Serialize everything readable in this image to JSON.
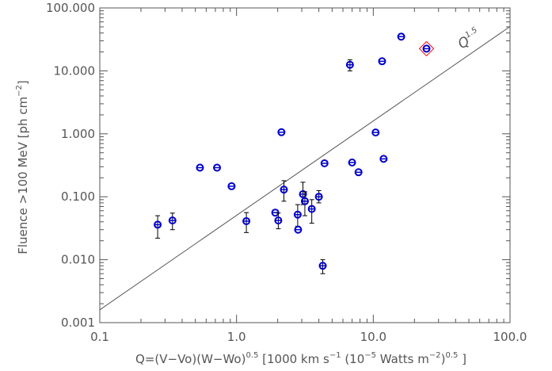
{
  "chart_data": {
    "type": "scatter",
    "title": "",
    "xlabel": {
      "prefix": "Q=(V−Vo)(W−Wo)",
      "exp1": "0.5",
      "mid": "  [1000 km s",
      "exp2": "−1",
      "mid2": " (10",
      "exp3": "−5",
      "mid3": " Watts m",
      "exp4": "−2",
      "mid4": ")",
      "exp5": "0.5",
      "suffix": " ]"
    },
    "ylabel": {
      "prefix": "Fluence >100 MeV [ph cm",
      "exp": "−2",
      "suffix": "]"
    },
    "xscale": "log",
    "yscale": "log",
    "xlim": [
      0.1,
      100
    ],
    "ylim": [
      0.001,
      100
    ],
    "xticks": [
      {
        "value": 0.1,
        "label": "0.1"
      },
      {
        "value": 1,
        "label": "1.0"
      },
      {
        "value": 10,
        "label": "10.0"
      },
      {
        "value": 100,
        "label": "100.0"
      }
    ],
    "yticks": [
      {
        "value": 0.001,
        "label": "0.001"
      },
      {
        "value": 0.01,
        "label": "0.010"
      },
      {
        "value": 0.1,
        "label": "0.100"
      },
      {
        "value": 1,
        "label": "1.000"
      },
      {
        "value": 10,
        "label": "10.000"
      },
      {
        "value": 100,
        "label": "100.000"
      }
    ],
    "grid": false,
    "colors": {
      "points": "#0000cc",
      "highlight": "#ff0000",
      "line": "#555555",
      "text": "#555555"
    },
    "points": [
      {
        "x": 0.265,
        "y": 0.036,
        "ylo": 0.022,
        "yhi": 0.05
      },
      {
        "x": 0.34,
        "y": 0.042,
        "ylo": 0.03,
        "yhi": 0.055
      },
      {
        "x": 0.54,
        "y": 0.29
      },
      {
        "x": 0.72,
        "y": 0.29
      },
      {
        "x": 0.92,
        "y": 0.147
      },
      {
        "x": 1.18,
        "y": 0.041,
        "ylo": 0.027,
        "yhi": 0.056
      },
      {
        "x": 1.92,
        "y": 0.056
      },
      {
        "x": 2.02,
        "y": 0.042,
        "ylo": 0.031,
        "yhi": 0.055
      },
      {
        "x": 2.13,
        "y": 1.06
      },
      {
        "x": 2.22,
        "y": 0.13,
        "ylo": 0.085,
        "yhi": 0.18
      },
      {
        "x": 2.8,
        "y": 0.052,
        "ylo": 0.034,
        "yhi": 0.075
      },
      {
        "x": 2.82,
        "y": 0.03
      },
      {
        "x": 3.06,
        "y": 0.11,
        "ylo": 0.075,
        "yhi": 0.17
      },
      {
        "x": 3.16,
        "y": 0.085,
        "ylo": 0.05,
        "yhi": 0.12
      },
      {
        "x": 3.55,
        "y": 0.064,
        "ylo": 0.038,
        "yhi": 0.09
      },
      {
        "x": 4.0,
        "y": 0.1,
        "ylo": 0.08,
        "yhi": 0.125
      },
      {
        "x": 4.27,
        "y": 0.008,
        "ylo": 0.006,
        "yhi": 0.01
      },
      {
        "x": 4.4,
        "y": 0.34
      },
      {
        "x": 6.75,
        "y": 12.5,
        "ylo": 10.0,
        "yhi": 15.0
      },
      {
        "x": 7.0,
        "y": 0.35
      },
      {
        "x": 7.8,
        "y": 0.245
      },
      {
        "x": 10.4,
        "y": 1.05
      },
      {
        "x": 11.6,
        "y": 14.2
      },
      {
        "x": 11.9,
        "y": 0.4
      },
      {
        "x": 16.0,
        "y": 35.0
      },
      {
        "x": 24.5,
        "y": 22.5,
        "highlight": true
      }
    ],
    "fit_line": {
      "label": "Q",
      "label_exp": "1.5",
      "points": [
        [
          0.1,
          0.0016
        ],
        [
          100,
          50.6
        ]
      ]
    }
  }
}
